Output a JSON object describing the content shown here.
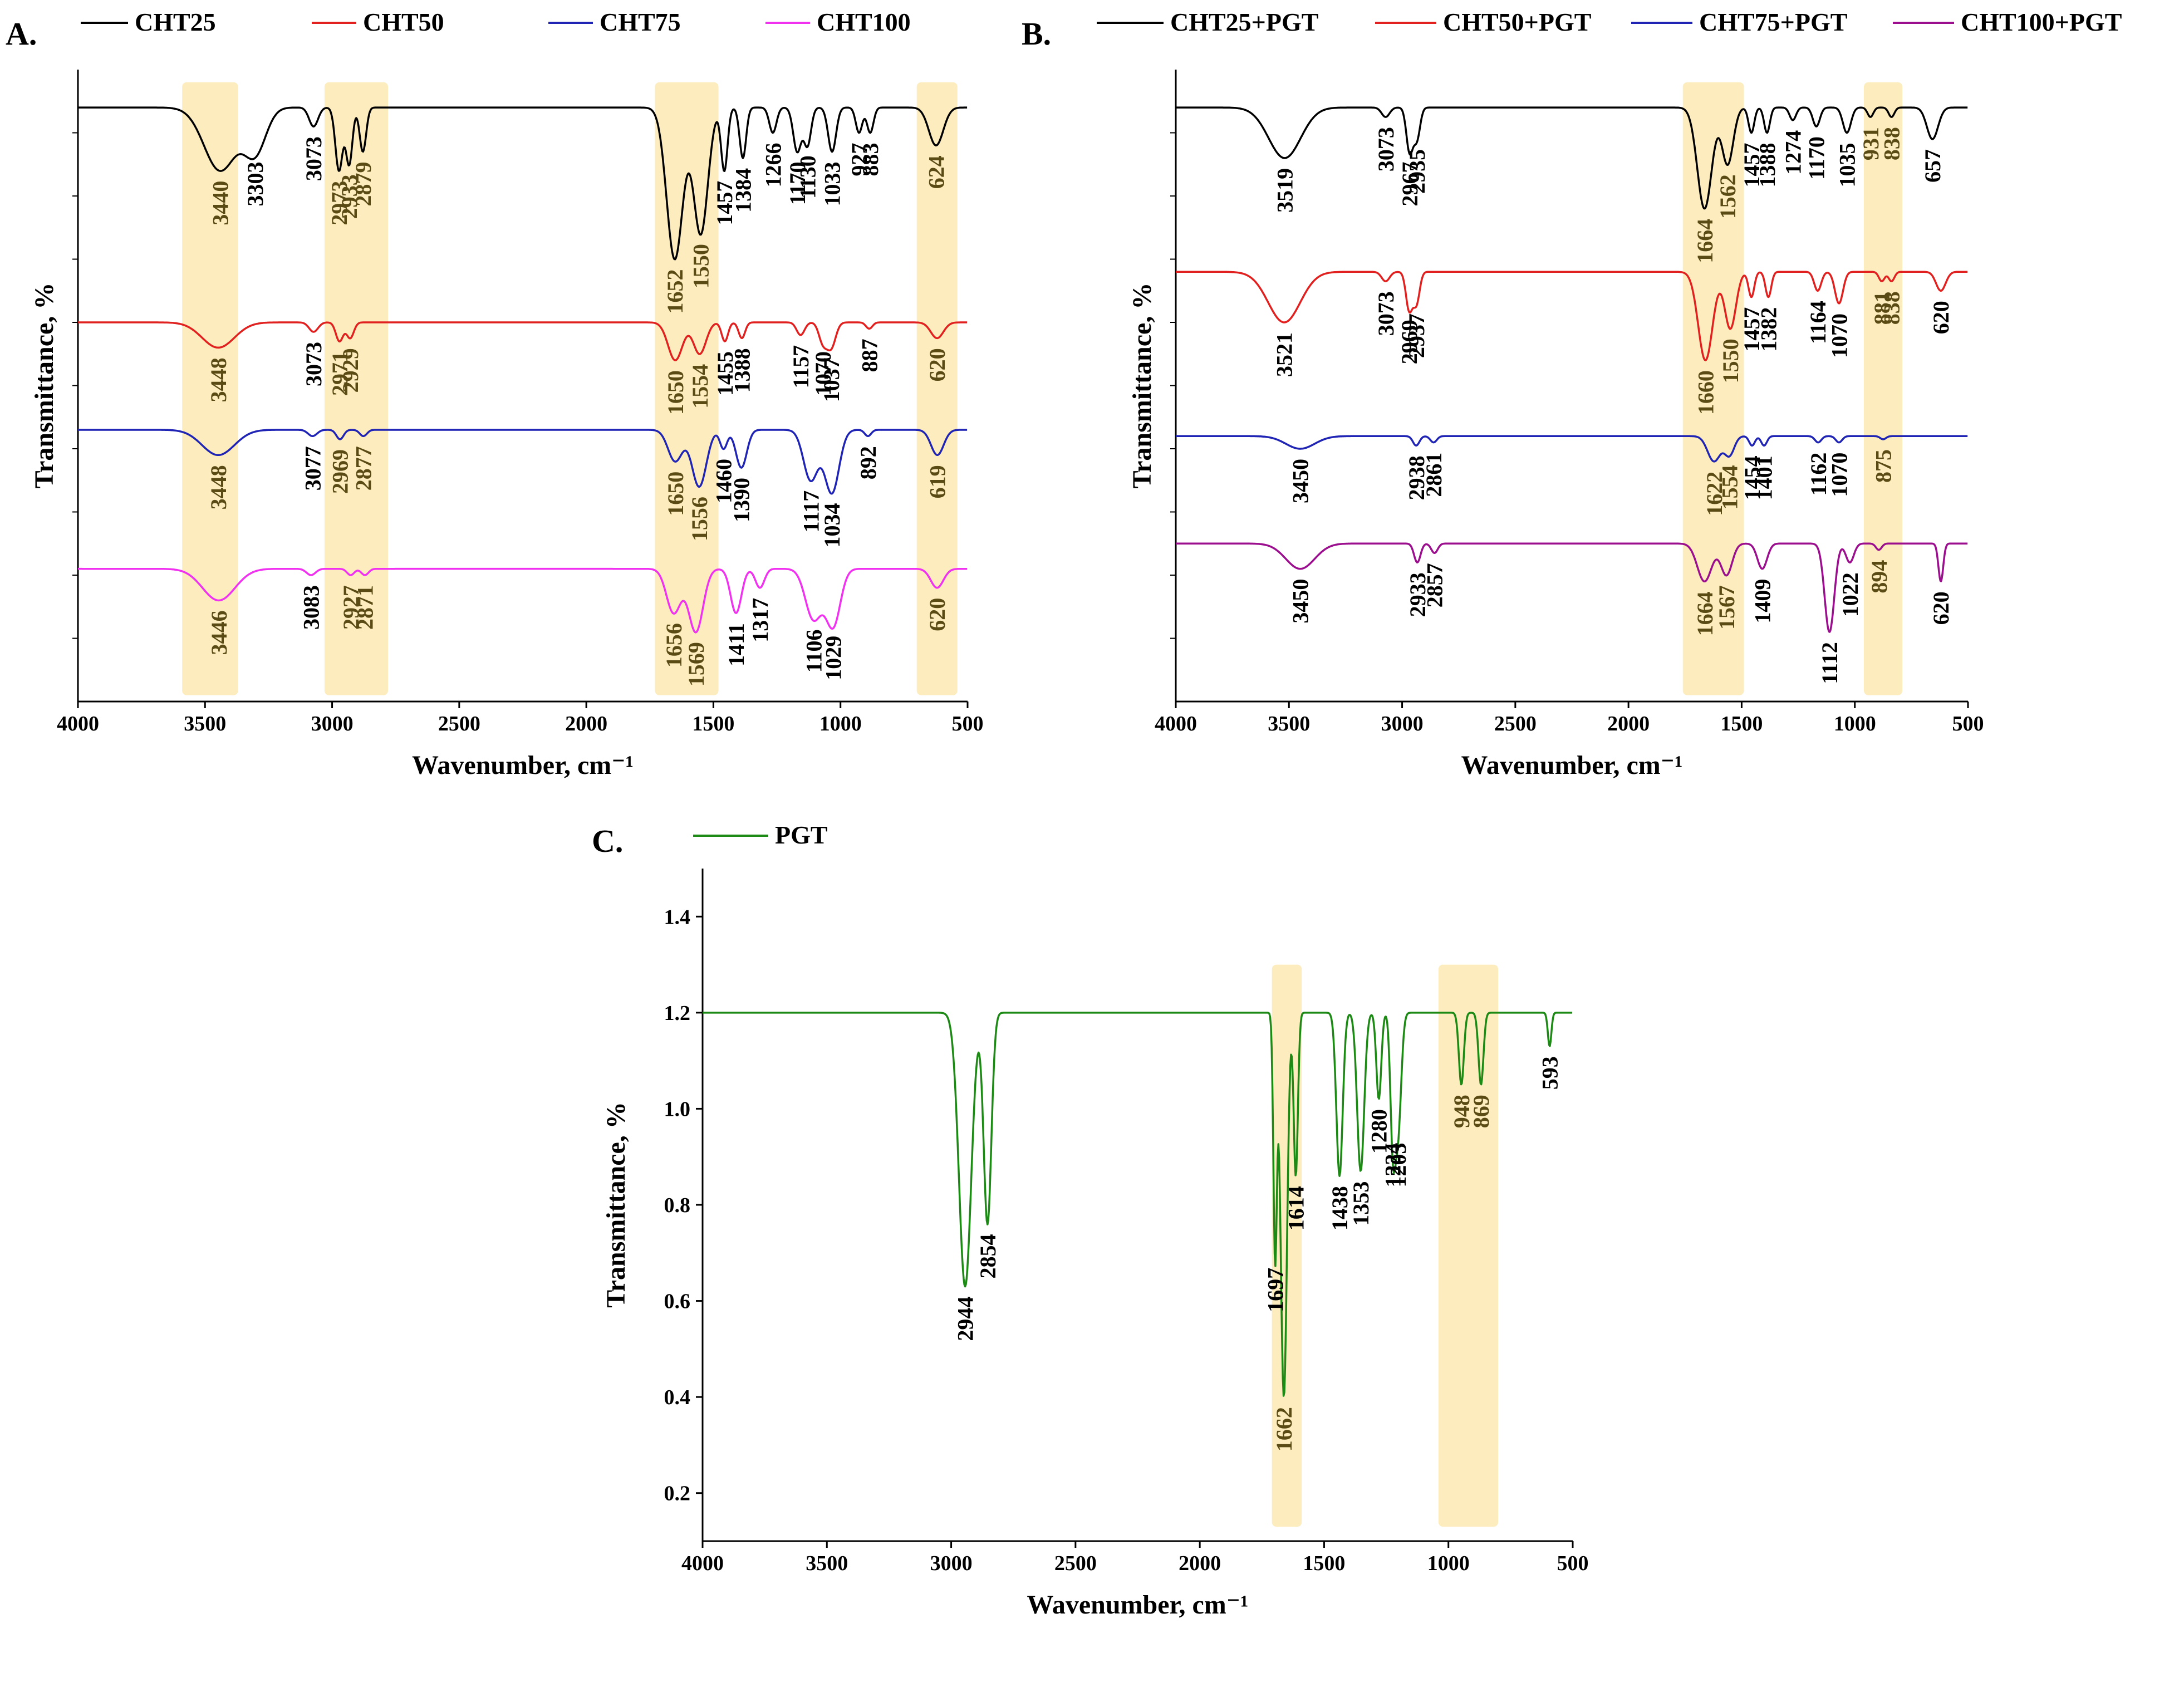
{
  "colors": {
    "black": "#000000",
    "red": "#e0211f",
    "blue": "#1f24b4",
    "magenta": "#f032f0",
    "purple": "#9b0e8e",
    "green": "#1d8a16",
    "highlight": "#fcecbe",
    "peak_label_highlight": "#5a4a14"
  },
  "chart_data": [
    {
      "panel": "A.",
      "type": "line",
      "xlabel": "Wavenumber, cm⁻¹",
      "ylabel": "Transmittance, %",
      "xlim": [
        4000,
        500
      ],
      "xticks": [
        4000,
        3500,
        3000,
        2500,
        2000,
        1500,
        1000,
        500
      ],
      "highlight_bands": [
        [
          3590,
          3370
        ],
        [
          3030,
          2780
        ],
        [
          1730,
          1480
        ],
        [
          700,
          540
        ]
      ],
      "series": [
        {
          "name": "CHT25",
          "color": "black",
          "baseline": 0.94,
          "peaks": [
            {
              "x": 3440,
              "d": 0.1,
              "w": 90,
              "label": "3440",
              "hl": true
            },
            {
              "x": 3303,
              "d": 0.07,
              "w": 60,
              "label": "3303"
            },
            {
              "x": 3073,
              "d": 0.03,
              "w": 25,
              "label": "3073"
            },
            {
              "x": 2973,
              "d": 0.1,
              "w": 20,
              "label": "2973",
              "hl": true
            },
            {
              "x": 2933,
              "d": 0.09,
              "w": 18,
              "label": "2933",
              "hl": true
            },
            {
              "x": 2879,
              "d": 0.07,
              "w": 18,
              "label": "2879",
              "hl": true
            },
            {
              "x": 1652,
              "d": 0.24,
              "w": 45,
              "label": "1652",
              "hl": true
            },
            {
              "x": 1550,
              "d": 0.2,
              "w": 40,
              "label": "1550",
              "hl": true
            },
            {
              "x": 1457,
              "d": 0.1,
              "w": 18,
              "label": "1457"
            },
            {
              "x": 1384,
              "d": 0.08,
              "w": 18,
              "label": "1384"
            },
            {
              "x": 1266,
              "d": 0.04,
              "w": 20,
              "label": "1266"
            },
            {
              "x": 1170,
              "d": 0.07,
              "w": 22,
              "label": "1170"
            },
            {
              "x": 1130,
              "d": 0.06,
              "w": 20,
              "label": "1130"
            },
            {
              "x": 1033,
              "d": 0.07,
              "w": 22,
              "label": "1033"
            },
            {
              "x": 927,
              "d": 0.04,
              "w": 18,
              "label": "927"
            },
            {
              "x": 883,
              "d": 0.04,
              "w": 18,
              "label": "883"
            },
            {
              "x": 624,
              "d": 0.06,
              "w": 40,
              "label": "624",
              "hl": true
            }
          ]
        },
        {
          "name": "CHT50",
          "color": "red",
          "baseline": 0.6,
          "peaks": [
            {
              "x": 3448,
              "d": 0.04,
              "w": 90,
              "label": "3448",
              "hl": true
            },
            {
              "x": 3073,
              "d": 0.015,
              "w": 25,
              "label": "3073"
            },
            {
              "x": 2971,
              "d": 0.03,
              "w": 20,
              "label": "2971",
              "hl": true
            },
            {
              "x": 2929,
              "d": 0.025,
              "w": 20,
              "label": "2929",
              "hl": true
            },
            {
              "x": 1650,
              "d": 0.06,
              "w": 40,
              "label": "1650",
              "hl": true
            },
            {
              "x": 1554,
              "d": 0.05,
              "w": 35,
              "label": "1554",
              "hl": true
            },
            {
              "x": 1455,
              "d": 0.03,
              "w": 18,
              "label": "1455"
            },
            {
              "x": 1388,
              "d": 0.025,
              "w": 18,
              "label": "1388"
            },
            {
              "x": 1157,
              "d": 0.02,
              "w": 22,
              "label": "1157"
            },
            {
              "x": 1070,
              "d": 0.03,
              "w": 22,
              "label": "1070"
            },
            {
              "x": 1037,
              "d": 0.04,
              "w": 25,
              "label": "1037"
            },
            {
              "x": 887,
              "d": 0.01,
              "w": 18,
              "label": "887"
            },
            {
              "x": 620,
              "d": 0.025,
              "w": 35,
              "label": "620",
              "hl": true
            }
          ]
        },
        {
          "name": "CHT75",
          "color": "blue",
          "baseline": 0.43,
          "peaks": [
            {
              "x": 3448,
              "d": 0.04,
              "w": 90,
              "label": "3448",
              "hl": true
            },
            {
              "x": 3077,
              "d": 0.01,
              "w": 25,
              "label": "3077"
            },
            {
              "x": 2969,
              "d": 0.015,
              "w": 20,
              "label": "2969",
              "hl": true
            },
            {
              "x": 2877,
              "d": 0.01,
              "w": 20,
              "label": "2877",
              "hl": true
            },
            {
              "x": 1650,
              "d": 0.05,
              "w": 40,
              "label": "1650",
              "hl": true
            },
            {
              "x": 1556,
              "d": 0.09,
              "w": 40,
              "label": "1556",
              "hl": true
            },
            {
              "x": 1460,
              "d": 0.03,
              "w": 20,
              "label": "1460"
            },
            {
              "x": 1390,
              "d": 0.06,
              "w": 30,
              "label": "1390"
            },
            {
              "x": 1117,
              "d": 0.08,
              "w": 40,
              "label": "1117"
            },
            {
              "x": 1034,
              "d": 0.1,
              "w": 40,
              "label": "1034"
            },
            {
              "x": 892,
              "d": 0.01,
              "w": 18,
              "label": "892"
            },
            {
              "x": 619,
              "d": 0.04,
              "w": 35,
              "label": "619",
              "hl": true
            }
          ]
        },
        {
          "name": "CHT100",
          "color": "magenta",
          "baseline": 0.21,
          "peaks": [
            {
              "x": 3446,
              "d": 0.05,
              "w": 90,
              "label": "3446",
              "hl": true
            },
            {
              "x": 3083,
              "d": 0.01,
              "w": 25,
              "label": "3083"
            },
            {
              "x": 2927,
              "d": 0.01,
              "w": 20,
              "label": "2927",
              "hl": true
            },
            {
              "x": 2871,
              "d": 0.01,
              "w": 20,
              "label": "2871",
              "hl": true
            },
            {
              "x": 1656,
              "d": 0.07,
              "w": 40,
              "label": "1656",
              "hl": true
            },
            {
              "x": 1569,
              "d": 0.1,
              "w": 40,
              "label": "1569",
              "hl": true
            },
            {
              "x": 1411,
              "d": 0.07,
              "w": 30,
              "label": "1411"
            },
            {
              "x": 1317,
              "d": 0.03,
              "w": 25,
              "label": "1317"
            },
            {
              "x": 1106,
              "d": 0.08,
              "w": 45,
              "label": "1106"
            },
            {
              "x": 1029,
              "d": 0.09,
              "w": 40,
              "label": "1029"
            },
            {
              "x": 620,
              "d": 0.03,
              "w": 35,
              "label": "620",
              "hl": true
            }
          ]
        }
      ]
    },
    {
      "panel": "B.",
      "type": "line",
      "xlabel": "Wavenumber, cm⁻¹",
      "ylabel": "Transmittance, %",
      "xlim": [
        4000,
        500
      ],
      "xticks": [
        4000,
        3500,
        3000,
        2500,
        2000,
        1500,
        1000,
        500
      ],
      "highlight_bands": [
        [
          1760,
          1490
        ],
        [
          960,
          790
        ]
      ],
      "series": [
        {
          "name": "CHT25+PGT",
          "color": "black",
          "baseline": 0.94,
          "peaks": [
            {
              "x": 3519,
              "d": 0.08,
              "w": 100,
              "label": "3519"
            },
            {
              "x": 3073,
              "d": 0.015,
              "w": 25,
              "label": "3073"
            },
            {
              "x": 2967,
              "d": 0.07,
              "w": 20,
              "label": "2967"
            },
            {
              "x": 2935,
              "d": 0.05,
              "w": 20,
              "label": "2935"
            },
            {
              "x": 1664,
              "d": 0.16,
              "w": 45,
              "label": "1664",
              "hl": true
            },
            {
              "x": 1562,
              "d": 0.09,
              "w": 35,
              "label": "1562",
              "hl": true
            },
            {
              "x": 1457,
              "d": 0.04,
              "w": 18,
              "label": "1457"
            },
            {
              "x": 1388,
              "d": 0.04,
              "w": 18,
              "label": "1388"
            },
            {
              "x": 1274,
              "d": 0.02,
              "w": 20,
              "label": "1274"
            },
            {
              "x": 1170,
              "d": 0.03,
              "w": 22,
              "label": "1170"
            },
            {
              "x": 1035,
              "d": 0.04,
              "w": 25,
              "label": "1035"
            },
            {
              "x": 931,
              "d": 0.015,
              "w": 18,
              "label": "931",
              "hl": true
            },
            {
              "x": 838,
              "d": 0.015,
              "w": 18,
              "label": "838",
              "hl": true
            },
            {
              "x": 657,
              "d": 0.05,
              "w": 35,
              "label": "657"
            }
          ]
        },
        {
          "name": "CHT50+PGT",
          "color": "red",
          "baseline": 0.68,
          "peaks": [
            {
              "x": 3521,
              "d": 0.08,
              "w": 100,
              "label": "3521"
            },
            {
              "x": 3073,
              "d": 0.015,
              "w": 25,
              "label": "3073"
            },
            {
              "x": 2969,
              "d": 0.06,
              "w": 20,
              "label": "2969"
            },
            {
              "x": 2937,
              "d": 0.05,
              "w": 20,
              "label": "2937"
            },
            {
              "x": 1660,
              "d": 0.14,
              "w": 45,
              "label": "1660",
              "hl": true
            },
            {
              "x": 1550,
              "d": 0.09,
              "w": 35,
              "label": "1550",
              "hl": true
            },
            {
              "x": 1457,
              "d": 0.04,
              "w": 18,
              "label": "1457"
            },
            {
              "x": 1382,
              "d": 0.04,
              "w": 18,
              "label": "1382"
            },
            {
              "x": 1164,
              "d": 0.03,
              "w": 22,
              "label": "1164"
            },
            {
              "x": 1070,
              "d": 0.05,
              "w": 25,
              "label": "1070"
            },
            {
              "x": 881,
              "d": 0.015,
              "w": 18,
              "label": "881",
              "hl": true
            },
            {
              "x": 838,
              "d": 0.015,
              "w": 18,
              "label": "838",
              "hl": true
            },
            {
              "x": 620,
              "d": 0.03,
              "w": 30,
              "label": "620"
            }
          ]
        },
        {
          "name": "CHT75+PGT",
          "color": "blue",
          "baseline": 0.42,
          "peaks": [
            {
              "x": 3450,
              "d": 0.02,
              "w": 90,
              "label": "3450"
            },
            {
              "x": 2938,
              "d": 0.015,
              "w": 20,
              "label": "2938"
            },
            {
              "x": 2861,
              "d": 0.01,
              "w": 20,
              "label": "2861"
            },
            {
              "x": 1622,
              "d": 0.04,
              "w": 40,
              "label": "1622",
              "hl": true
            },
            {
              "x": 1554,
              "d": 0.03,
              "w": 30,
              "label": "1554",
              "hl": true
            },
            {
              "x": 1454,
              "d": 0.015,
              "w": 18,
              "label": "1454"
            },
            {
              "x": 1401,
              "d": 0.015,
              "w": 18,
              "label": "1401"
            },
            {
              "x": 1162,
              "d": 0.01,
              "w": 20,
              "label": "1162"
            },
            {
              "x": 1070,
              "d": 0.01,
              "w": 20,
              "label": "1070"
            },
            {
              "x": 875,
              "d": 0.005,
              "w": 18,
              "label": "875",
              "hl": true
            }
          ]
        },
        {
          "name": "CHT100+PGT",
          "color": "purple",
          "baseline": 0.25,
          "peaks": [
            {
              "x": 3450,
              "d": 0.04,
              "w": 90,
              "label": "3450"
            },
            {
              "x": 2933,
              "d": 0.03,
              "w": 20,
              "label": "2933"
            },
            {
              "x": 2857,
              "d": 0.015,
              "w": 20,
              "label": "2857"
            },
            {
              "x": 1664,
              "d": 0.06,
              "w": 45,
              "label": "1664",
              "hl": true
            },
            {
              "x": 1567,
              "d": 0.05,
              "w": 35,
              "label": "1567",
              "hl": true
            },
            {
              "x": 1409,
              "d": 0.04,
              "w": 30,
              "label": "1409"
            },
            {
              "x": 1112,
              "d": 0.14,
              "w": 30,
              "label": "1112"
            },
            {
              "x": 1022,
              "d": 0.03,
              "w": 25,
              "label": "1022"
            },
            {
              "x": 894,
              "d": 0.01,
              "w": 18,
              "label": "894",
              "hl": true
            },
            {
              "x": 620,
              "d": 0.06,
              "w": 15,
              "label": "620"
            }
          ]
        }
      ]
    },
    {
      "panel": "C.",
      "type": "line",
      "xlabel": "Wavenumber, cm⁻¹",
      "ylabel": "Transmittance, %",
      "xlim": [
        4000,
        500
      ],
      "ylim": [
        0.1,
        1.5
      ],
      "xticks": [
        4000,
        3500,
        3000,
        2500,
        2000,
        1500,
        1000,
        500
      ],
      "yticks": [
        0.2,
        0.4,
        0.6,
        0.8,
        1.0,
        1.2,
        1.4
      ],
      "ytick_labels": [
        "0.2",
        "0.4",
        "0.6",
        "0.8",
        "1.0",
        "1.2",
        "1.4"
      ],
      "highlight_bands": [
        [
          1710,
          1590
        ],
        [
          1040,
          800
        ]
      ],
      "series": [
        {
          "name": "PGT",
          "color": "green",
          "baseline": 1.2,
          "peaks": [
            {
              "x": 2944,
              "y": 0.63,
              "w": 35,
              "label": "2944"
            },
            {
              "x": 2854,
              "y": 0.76,
              "w": 22,
              "label": "2854"
            },
            {
              "x": 1697,
              "y": 0.69,
              "w": 10,
              "label": "1697"
            },
            {
              "x": 1662,
              "y": 0.4,
              "w": 18,
              "label": "1662",
              "hl": true
            },
            {
              "x": 1614,
              "y": 0.86,
              "w": 12,
              "label": "1614"
            },
            {
              "x": 1438,
              "y": 0.86,
              "w": 18,
              "label": "1438"
            },
            {
              "x": 1353,
              "y": 0.87,
              "w": 20,
              "label": "1353"
            },
            {
              "x": 1280,
              "y": 1.02,
              "w": 14,
              "label": "1280"
            },
            {
              "x": 1224,
              "y": 0.95,
              "w": 14,
              "label": "1224"
            },
            {
              "x": 1203,
              "y": 0.95,
              "w": 18,
              "label": "1203"
            },
            {
              "x": 948,
              "y": 1.05,
              "w": 14,
              "label": "948",
              "hl": true
            },
            {
              "x": 869,
              "y": 1.05,
              "w": 14,
              "label": "869",
              "hl": true
            },
            {
              "x": 593,
              "y": 1.13,
              "w": 10,
              "label": "593"
            }
          ]
        }
      ]
    }
  ]
}
